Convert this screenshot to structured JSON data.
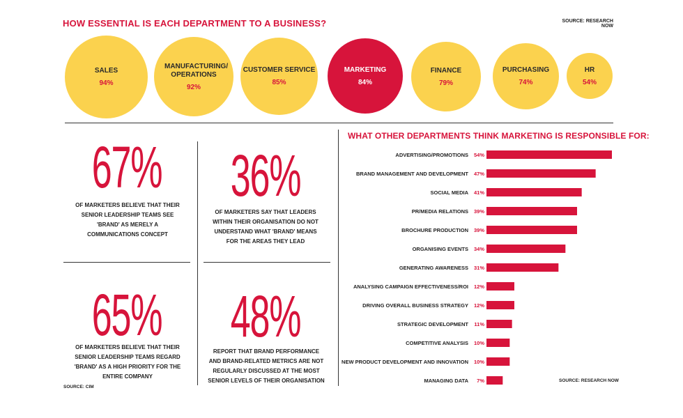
{
  "header": {
    "title": "HOW ESSENTIAL IS EACH DEPARTMENT TO A BUSINESS?",
    "source": "SOURCE: RESEARCH NOW"
  },
  "colors": {
    "accent": "#d7143b",
    "circle": "#fbd24e",
    "text": "#222222"
  },
  "departments": [
    {
      "label": "SALES",
      "value": "94%"
    },
    {
      "label": "MANUFACTURING/ OPERATIONS",
      "value": "92%"
    },
    {
      "label": "CUSTOMER SERVICE",
      "value": "85%"
    },
    {
      "label": "MARKETING",
      "value": "84%"
    },
    {
      "label": "FINANCE",
      "value": "79%"
    },
    {
      "label": "PURCHASING",
      "value": "74%"
    },
    {
      "label": "HR",
      "value": "54%"
    }
  ],
  "stats": [
    {
      "number": "67%",
      "text": "OF MARKETERS BELIEVE THAT THEIR SENIOR LEADERSHIP TEAMS SEE 'BRAND' AS MERELY A COMMUNICATIONS CONCEPT"
    },
    {
      "number": "36%",
      "text": "OF MARKETERS SAY THAT LEADERS WITHIN THEIR ORGANISATION DO NOT UNDERSTAND WHAT 'BRAND' MEANS FOR THE AREAS THEY LEAD"
    },
    {
      "number": "65%",
      "text": "OF MARKETERS BELIEVE THAT THEIR SENIOR LEADERSHIP TEAMS REGARD 'BRAND' AS A HIGH PRIORITY FOR THE ENTIRE COMPANY"
    },
    {
      "number": "48%",
      "text": "REPORT THAT BRAND PERFORMANCE AND BRAND-RELATED METRICS ARE NOT REGULARLY DISCUSSED AT THE MOST SENIOR LEVELS OF THEIR ORGANISATION"
    }
  ],
  "stats_source": "SOURCE: CIM",
  "chart_data": {
    "type": "bar",
    "orientation": "horizontal",
    "title": "WHAT OTHER DEPARTMENTS THINK MARKETING IS RESPONSIBLE FOR:",
    "source": "SOURCE: RESEARCH NOW",
    "categories": [
      "ADVERTISING/PROMOTIONS",
      "BRAND MANAGEMENT AND DEVELOPMENT",
      "SOCIAL MEDIA",
      "PR/MEDIA RELATIONS",
      "BROCHURE PRODUCTION",
      "ORGANISING EVENTS",
      "GENERATING AWARENESS",
      "ANALYSING CAMPAIGN EFFECTIVENESS/ROI",
      "DRIVING OVERALL BUSINESS STRATEGY",
      "STRATEGIC DEVELOPMENT",
      "COMPETITIVE ANALYSIS",
      "NEW PRODUCT DEVELOPMENT AND INNOVATION",
      "MANAGING DATA"
    ],
    "values": [
      54,
      47,
      41,
      39,
      39,
      34,
      31,
      12,
      12,
      11,
      10,
      10,
      7
    ],
    "value_labels": [
      "54%",
      "47%",
      "41%",
      "39%",
      "39%",
      "34%",
      "31%",
      "12%",
      "12%",
      "11%",
      "10%",
      "10%",
      "7%"
    ],
    "xlim": [
      0,
      54
    ],
    "bar_color": "#d7143b",
    "grid": false
  }
}
